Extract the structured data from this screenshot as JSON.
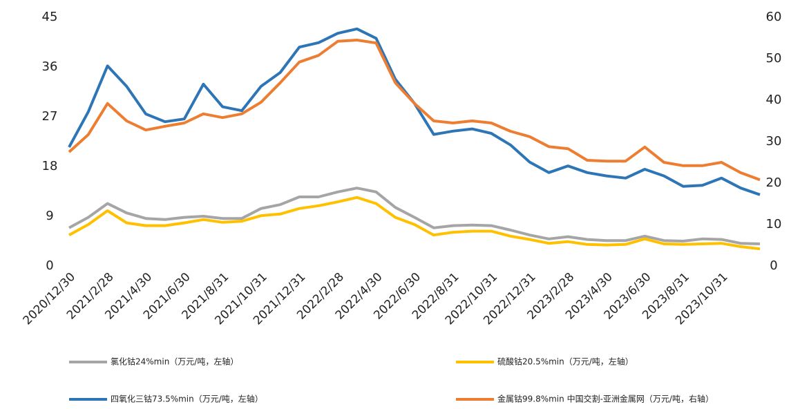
{
  "chart_data": {
    "type": "line",
    "categories": [
      "2020/12/30",
      null,
      "2021/2/28",
      null,
      "2021/4/30",
      null,
      "2021/6/30",
      null,
      "2021/8/31",
      null,
      "2021/10/31",
      null,
      "2021/12/31",
      null,
      "2022/2/28",
      null,
      "2022/4/30",
      null,
      "2022/6/30",
      null,
      "2022/8/31",
      null,
      "2022/10/31",
      null,
      "2022/12/31",
      null,
      "2023/2/28",
      null,
      "2023/4/30",
      null,
      "2023/6/30",
      null,
      "2023/8/31",
      null,
      "2023/10/31",
      null,
      null
    ],
    "ylim": [
      0,
      45
    ],
    "yticks": [
      0,
      9,
      18,
      27,
      36,
      45
    ],
    "y2lim": [
      0,
      60
    ],
    "y2ticks": [
      0,
      10,
      20,
      30,
      40,
      50,
      60
    ],
    "legend": "bottom",
    "series": [
      {
        "name": "氯化钴24%min（万元/吨，左轴）",
        "color": "#a5a5a5",
        "values": [
          6.9,
          8.8,
          11.3,
          9.6,
          8.6,
          8.4,
          8.8,
          9,
          8.6,
          8.6,
          10.4,
          11.1,
          12.5,
          12.5,
          13.4,
          14.1,
          13.4,
          10.6,
          8.8,
          6.9,
          7.3,
          7.4,
          7.3,
          6.5,
          5.6,
          4.9,
          5.3,
          4.8,
          4.6,
          4.6,
          5.4,
          4.6,
          4.5,
          4.9,
          4.8,
          4.1,
          4
        ]
      },
      {
        "name": "硫酸钴20.5%min（万元/吨，左轴）",
        "color": "#ffc000",
        "values": [
          5.6,
          7.5,
          10,
          7.8,
          7.3,
          7.3,
          7.8,
          8.4,
          7.9,
          8.1,
          9.1,
          9.4,
          10.4,
          10.9,
          11.6,
          12.4,
          11.3,
          8.8,
          7.5,
          5.6,
          6.1,
          6.3,
          6.3,
          5.4,
          4.8,
          4.1,
          4.4,
          3.9,
          3.8,
          3.9,
          4.9,
          4,
          3.9,
          4,
          4.1,
          3.5,
          3.1
        ]
      },
      {
        "name": "四氧化三钴73.5%min（万元/吨，左轴）",
        "color": "#2e75b6",
        "values": [
          21.5,
          27.9,
          36.2,
          32.5,
          27.5,
          26.1,
          26.6,
          32.9,
          28.8,
          28.1,
          32.5,
          35,
          39.6,
          40.4,
          42.1,
          42.9,
          41.2,
          33.8,
          29.4,
          23.8,
          24.4,
          24.8,
          24,
          21.9,
          18.8,
          16.9,
          18.1,
          16.9,
          16.3,
          15.9,
          17.5,
          16.3,
          14.4,
          14.6,
          15.9,
          14.1,
          12.9
        ]
      },
      {
        "name": "金属钴99.8%min 中国交割-亚洲金属网（万元/吨，右轴）",
        "color": "#ed7d31",
        "axis": "y2",
        "values": [
          27.5,
          31.7,
          39.2,
          35,
          32.8,
          33.7,
          34.5,
          36.7,
          35.8,
          36.7,
          39.5,
          44.2,
          49.2,
          50.8,
          54.2,
          54.5,
          53.8,
          44.2,
          39.2,
          35,
          34.5,
          35,
          34.5,
          32.5,
          31.2,
          28.8,
          28.3,
          25.5,
          25.3,
          25.3,
          28.7,
          25,
          24.2,
          24.2,
          25,
          22.5,
          20.8
        ]
      }
    ]
  }
}
